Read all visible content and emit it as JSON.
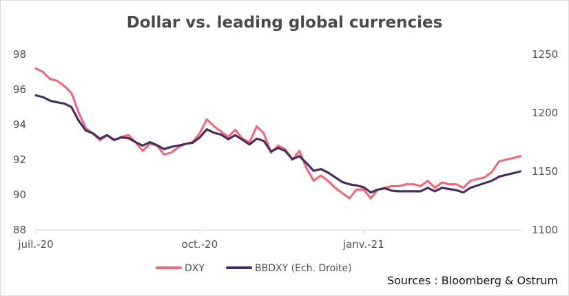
{
  "chart_data": {
    "type": "line",
    "title": "Dollar vs. leading global currencies",
    "source": "Sources : Bloomberg & Ostrum",
    "x_ticks": [
      "juil.-20",
      "oct.-20",
      "janv.-21"
    ],
    "x_tick_dates": [
      "2020-07-01",
      "2020-10-01",
      "2021-01-01"
    ],
    "x_range": [
      "2020-07-01",
      "2021-03-31"
    ],
    "y_left": {
      "range": [
        88,
        98
      ],
      "ticks": [
        88,
        90,
        92,
        94,
        96,
        98
      ]
    },
    "y_right": {
      "range": [
        1100,
        1250
      ],
      "ticks": [
        1100,
        1150,
        1200,
        1250
      ]
    },
    "grid": false,
    "legend": "bottom",
    "series": [
      {
        "name": "DXY",
        "axis": "left",
        "color": "#f0697b",
        "points": [
          [
            "2020-07-01",
            97.2
          ],
          [
            "2020-07-05",
            97.0
          ],
          [
            "2020-07-09",
            96.6
          ],
          [
            "2020-07-13",
            96.5
          ],
          [
            "2020-07-17",
            96.2
          ],
          [
            "2020-07-21",
            95.8
          ],
          [
            "2020-07-25",
            94.7
          ],
          [
            "2020-07-29",
            93.8
          ],
          [
            "2020-08-02",
            93.5
          ],
          [
            "2020-08-06",
            93.1
          ],
          [
            "2020-08-10",
            93.4
          ],
          [
            "2020-08-14",
            93.1
          ],
          [
            "2020-08-18",
            93.3
          ],
          [
            "2020-08-22",
            93.4
          ],
          [
            "2020-08-26",
            93.0
          ],
          [
            "2020-08-30",
            92.5
          ],
          [
            "2020-09-03",
            92.9
          ],
          [
            "2020-09-07",
            92.8
          ],
          [
            "2020-09-11",
            92.3
          ],
          [
            "2020-09-15",
            92.4
          ],
          [
            "2020-09-19",
            92.7
          ],
          [
            "2020-09-23",
            92.9
          ],
          [
            "2020-09-27",
            93.0
          ],
          [
            "2020-10-01",
            93.5
          ],
          [
            "2020-10-05",
            94.3
          ],
          [
            "2020-10-09",
            93.9
          ],
          [
            "2020-10-13",
            93.6
          ],
          [
            "2020-10-17",
            93.3
          ],
          [
            "2020-10-21",
            93.7
          ],
          [
            "2020-10-25",
            93.2
          ],
          [
            "2020-10-29",
            93.0
          ],
          [
            "2020-11-02",
            93.9
          ],
          [
            "2020-11-06",
            93.5
          ],
          [
            "2020-11-10",
            92.4
          ],
          [
            "2020-11-14",
            92.8
          ],
          [
            "2020-11-18",
            92.6
          ],
          [
            "2020-11-22",
            92.0
          ],
          [
            "2020-11-26",
            92.5
          ],
          [
            "2020-11-30",
            91.5
          ],
          [
            "2020-12-04",
            90.8
          ],
          [
            "2020-12-08",
            91.1
          ],
          [
            "2020-12-12",
            90.8
          ],
          [
            "2020-12-16",
            90.4
          ],
          [
            "2020-12-20",
            90.1
          ],
          [
            "2020-12-24",
            89.8
          ],
          [
            "2020-12-28",
            90.3
          ],
          [
            "2021-01-01",
            90.3
          ],
          [
            "2021-01-05",
            89.8
          ],
          [
            "2021-01-09",
            90.3
          ],
          [
            "2021-01-13",
            90.4
          ],
          [
            "2021-01-17",
            90.5
          ],
          [
            "2021-01-21",
            90.5
          ],
          [
            "2021-01-25",
            90.6
          ],
          [
            "2021-01-29",
            90.6
          ],
          [
            "2021-02-02",
            90.5
          ],
          [
            "2021-02-06",
            90.8
          ],
          [
            "2021-02-10",
            90.4
          ],
          [
            "2021-02-14",
            90.7
          ],
          [
            "2021-02-18",
            90.6
          ],
          [
            "2021-02-22",
            90.6
          ],
          [
            "2021-02-26",
            90.4
          ],
          [
            "2021-03-02",
            90.8
          ],
          [
            "2021-03-06",
            90.9
          ],
          [
            "2021-03-10",
            91.0
          ],
          [
            "2021-03-14",
            91.3
          ],
          [
            "2021-03-18",
            91.9
          ],
          [
            "2021-03-22",
            92.0
          ],
          [
            "2021-03-26",
            92.1
          ],
          [
            "2021-03-30",
            92.2
          ]
        ]
      },
      {
        "name": "BBDXY (Ech. Droite)",
        "axis": "right",
        "color": "#472d63",
        "points": [
          [
            "2020-07-01",
            1215.0
          ],
          [
            "2020-07-05",
            1213.5
          ],
          [
            "2020-07-09",
            1210.5
          ],
          [
            "2020-07-13",
            1209.0
          ],
          [
            "2020-07-17",
            1208.0
          ],
          [
            "2020-07-21",
            1205.0
          ],
          [
            "2020-07-25",
            1193.5
          ],
          [
            "2020-07-29",
            1185.0
          ],
          [
            "2020-08-02",
            1182.5
          ],
          [
            "2020-08-06",
            1178.0
          ],
          [
            "2020-08-10",
            1181.0
          ],
          [
            "2020-08-14",
            1177.0
          ],
          [
            "2020-08-18",
            1179.0
          ],
          [
            "2020-08-22",
            1178.5
          ],
          [
            "2020-08-26",
            1175.0
          ],
          [
            "2020-08-30",
            1172.0
          ],
          [
            "2020-09-03",
            1175.0
          ],
          [
            "2020-09-07",
            1172.5
          ],
          [
            "2020-09-11",
            1169.0
          ],
          [
            "2020-09-15",
            1171.0
          ],
          [
            "2020-09-19",
            1172.0
          ],
          [
            "2020-09-23",
            1173.5
          ],
          [
            "2020-09-27",
            1174.5
          ],
          [
            "2020-10-01",
            1179.0
          ],
          [
            "2020-10-05",
            1186.0
          ],
          [
            "2020-10-09",
            1183.0
          ],
          [
            "2020-10-13",
            1181.5
          ],
          [
            "2020-10-17",
            1177.5
          ],
          [
            "2020-10-21",
            1181.0
          ],
          [
            "2020-10-25",
            1177.0
          ],
          [
            "2020-10-29",
            1173.0
          ],
          [
            "2020-11-02",
            1178.0
          ],
          [
            "2020-11-06",
            1176.0
          ],
          [
            "2020-11-10",
            1167.0
          ],
          [
            "2020-11-14",
            1170.0
          ],
          [
            "2020-11-18",
            1167.5
          ],
          [
            "2020-11-22",
            1160.5
          ],
          [
            "2020-11-26",
            1163.0
          ],
          [
            "2020-11-30",
            1157.0
          ],
          [
            "2020-12-04",
            1150.5
          ],
          [
            "2020-12-08",
            1152.0
          ],
          [
            "2020-12-12",
            1149.0
          ],
          [
            "2020-12-16",
            1145.0
          ],
          [
            "2020-12-20",
            1141.0
          ],
          [
            "2020-12-24",
            1139.0
          ],
          [
            "2020-12-28",
            1138.0
          ],
          [
            "2021-01-01",
            1136.5
          ],
          [
            "2021-01-05",
            1132.0
          ],
          [
            "2021-01-09",
            1134.5
          ],
          [
            "2021-01-13",
            1135.5
          ],
          [
            "2021-01-17",
            1133.5
          ],
          [
            "2021-01-21",
            1133.0
          ],
          [
            "2021-01-25",
            1133.0
          ],
          [
            "2021-01-29",
            1133.0
          ],
          [
            "2021-02-02",
            1133.0
          ],
          [
            "2021-02-06",
            1136.0
          ],
          [
            "2021-02-10",
            1133.0
          ],
          [
            "2021-02-14",
            1136.0
          ],
          [
            "2021-02-18",
            1135.0
          ],
          [
            "2021-02-22",
            1134.0
          ],
          [
            "2021-02-26",
            1132.0
          ],
          [
            "2021-03-02",
            1136.0
          ],
          [
            "2021-03-06",
            1138.0
          ],
          [
            "2021-03-10",
            1140.0
          ],
          [
            "2021-03-14",
            1142.0
          ],
          [
            "2021-03-18",
            1145.5
          ],
          [
            "2021-03-22",
            1147.0
          ],
          [
            "2021-03-26",
            1148.5
          ],
          [
            "2021-03-30",
            1150.0
          ]
        ]
      }
    ]
  }
}
